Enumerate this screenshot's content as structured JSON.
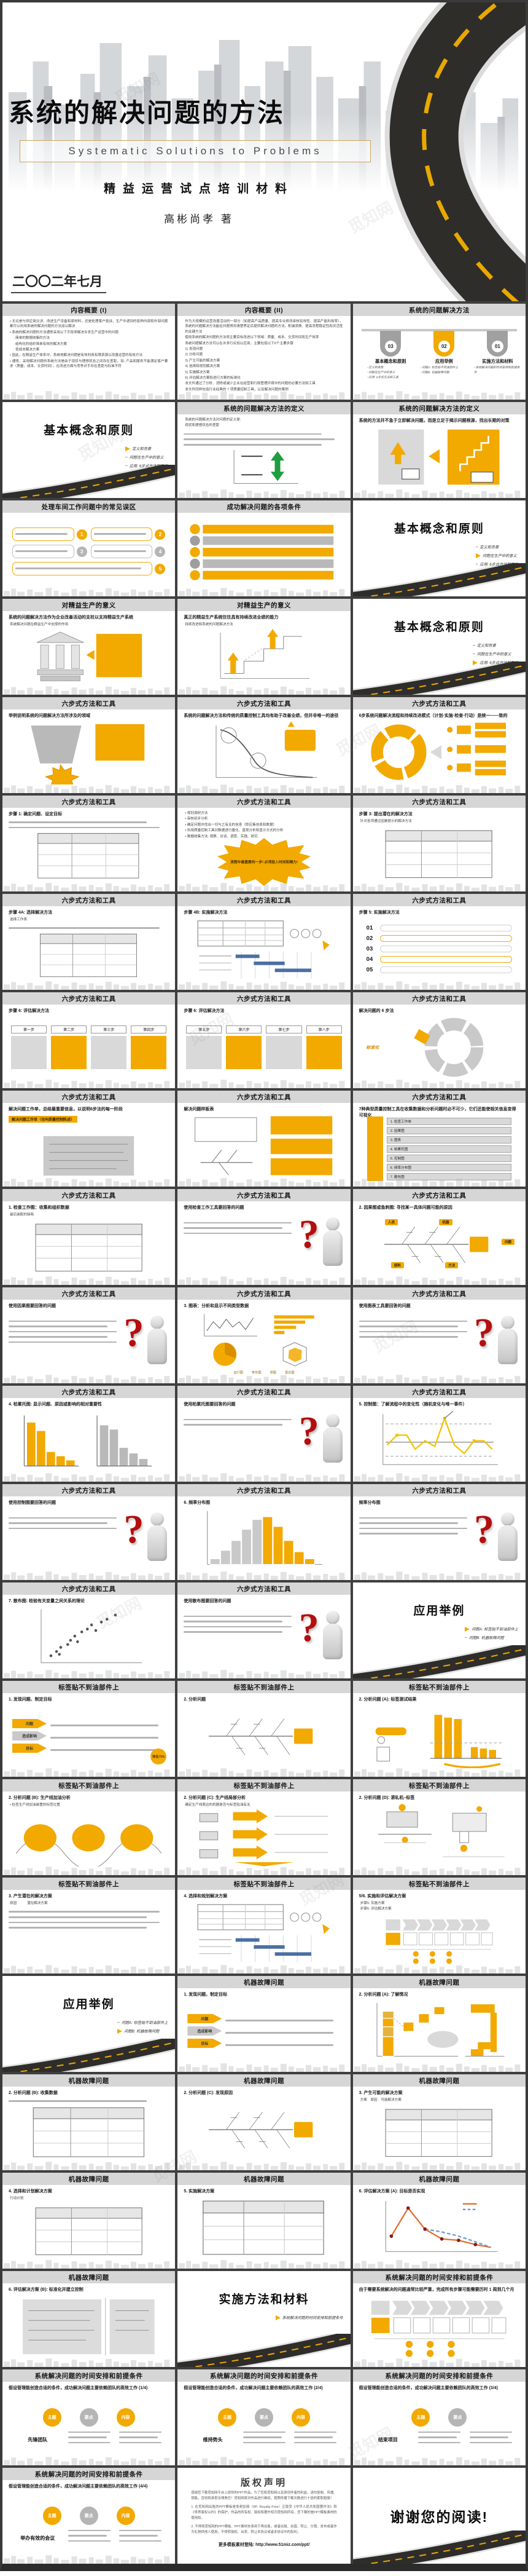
{
  "colors": {
    "accent": "#F2A900",
    "titlebar": "#D6D6D6",
    "road_dark": "#2F2D2A",
    "frame": "#3A3A3A",
    "question_red": "#B30F0F"
  },
  "watermark": "觅知网",
  "cover": {
    "title": "系统的解决问题的方法",
    "subtitle_en": "Systematic Solutions to Problems",
    "subtitle_zh": "精益运营试点培训材料",
    "author": "高彬尚孝 著",
    "date": "二〇〇二年七月"
  },
  "slides": [
    {
      "t": "内容概要 (I)",
      "b": [
        "• 无论是与供应商交涉、改进生产设备和原材料，还是处理客户投诉，生产中遇到的各种内部和外部问题都可以利用系统的解决问题的方法加以解决",
        "• 系统的解决问题的方法通常采用以下手段来解决许多生产运营中的问题",
        "　· 简单的数据收集的方法",
        "　· 结构化的组织简单有效的解决方案",
        "　· 低成本解决方案",
        "• 因此，在精益生产体系中，系统地解决问题是有效利用有限资源以改善运营的有效方法",
        "• 通常，采用解决问题的系统方法是由于现状与理想状态之间存在差距，如: 产品和服务不能满足客户要求（质量、成本、交货时间），在改进方面与竞争对手存在差距与标准不符"
      ]
    },
    {
      "t": "内容概要 (II)",
      "b": [
        "作为大规模的运营改善活动的一部分（如提高产品质量、提高专业修改审核有效性、提高产能利用率），系统的问题解决方法能在问题得到清楚界定后提供解决问题的方法，削减浪费、提高流程稳定性和灵活性的关键方法",
        "使用系统的解决问题的方法将主要目标改进以下领域：质量、成本、交货时间和生产效率",
        "系统问题解决方法可以在许多行业加以应用，主要包括以下6个主要步骤",
        "1) 发现问题",
        "2) 分析问题",
        "3) 产生可能的解决方案",
        "4) 选择和规划解决方案",
        "5) 实施解决方案",
        "6) 评估解决方案和进行方案的标准化",
        "本文件通过了分析、消除或减少企业在经营和行政管理环境中的问题的必要方法和工具",
        "本文件同样包括行业经典的 7 项质量控制工具，以及解决问题的案例"
      ]
    },
    {
      "t": "系统的问题解决方法",
      "v": "tags3",
      "tags": [
        {
          "num": "03",
          "color": "#a0a0a0",
          "label": "基本概念和原则",
          "subs": [
            "–定义和背景",
            "–问题在生产中的意义",
            "–应用: 6步式方法和工具"
          ]
        },
        {
          "num": "02",
          "color": "#F2A900",
          "label": "应用举例",
          "subs": [
            "–问题A: 标签贴不到油部件上",
            "–问题B: 机器故障问题"
          ]
        },
        {
          "num": "01",
          "color": "#a0a0a0",
          "label": "实施方法和材料",
          "subs": [
            "–系统解决问题的时间安排和前提条件"
          ]
        }
      ]
    },
    {
      "t": "基本概念和原则",
      "bar": false,
      "v": "divider",
      "items": [
        {
          "x": "定义和背景",
          "a": true
        },
        {
          "x": "问题在生产中的意义"
        },
        {
          "x": "应用: 6步式方法和工具"
        }
      ]
    },
    {
      "t": "系统的问题解决方法的定义",
      "b": [
        "系统的问题解决方法对问题的定义是:",
        "现状和理想状态的差距"
      ],
      "tl": 3,
      "v": "gap"
    },
    {
      "t": "系统的问题解决方法的定义",
      "sub": "系统的方法并不急于立即解决问题，而是立足于揭示问题根源，找出长期的对策",
      "v": "boxes2"
    },
    {
      "t": "处理车间工作问题中的常见误区",
      "v": "mis5",
      "nums": [
        "1",
        "2",
        "3",
        "4",
        "5"
      ]
    },
    {
      "t": "成功解决问题的各项条件",
      "v": "bars5"
    },
    {
      "t": "基本概念和原则",
      "bar": false,
      "v": "divider",
      "items": [
        {
          "x": "定义和背景"
        },
        {
          "x": "问题在生产中的意义",
          "a": true
        },
        {
          "x": "应用: 6步式方法和工具"
        }
      ]
    },
    {
      "t": "对精益生产的意义",
      "sub": "系统的问题解决方法作为企业改善活动的支柱以支持精益生产系统",
      "b": [
        "系统解决问题在精益生产中支撑的作用"
      ],
      "v": "temple"
    },
    {
      "t": "对精益生产的意义",
      "sub": "真正的精益生产系统往往具有持续改进业绩的能力",
      "b": [
        "持续改进和系统的问题解决方法"
      ],
      "v": "stair"
    },
    {
      "t": "基本概念和原则",
      "bar": false,
      "v": "divider",
      "items": [
        {
          "x": "定义和背景"
        },
        {
          "x": "问题在生产中的意义"
        },
        {
          "x": "应用: 6步式方法和工具",
          "a": true
        }
      ]
    },
    {
      "t": "六步式方法和工具",
      "sub": "举例说明系统的问题解决方法所涉及的领域",
      "v": "fields"
    },
    {
      "t": "六步式方法和工具",
      "sub": "系统的问题解决方法和传统的质量控制工具均有助于改善业绩，但并非唯一的途径",
      "v": "curve"
    },
    {
      "t": "六步式方法和工具",
      "sub": "6步系统问题解决流程和持续改进模式（计划·实施·检查·行动）是统一——致的",
      "v": "cycle"
    },
    {
      "t": "六步式方法和工具",
      "sub": "步骤 1: 确定问题、设定目标",
      "tl": 2,
      "v": "table"
    },
    {
      "t": "六步式方法和工具",
      "b": [
        "• 规划调研方法",
        "• 审核初步分析",
        "• 确定问题并找出一切与之有关的信息（即应集信息和数据）",
        "• 利用质量控制工具对数据进行量化、直观分析和显示方式的分析",
        "• 数据收集方法: 观察、访谈、调查、实践、研究"
      ],
      "v": "star",
      "note": "流程中最重要的一步! 必须投入时间和精力!"
    },
    {
      "t": "六步式方法和工具",
      "sub": "步骤 3: 提出潜在的解决方法",
      "b": [
        "针对各项通过因素提示的解决方法"
      ],
      "v": "table"
    },
    {
      "t": "六步式方法和工具",
      "sub": "步骤 4A: 选择解决方法",
      "b": [
        "选择工作表:"
      ],
      "tl": 1,
      "v": "table"
    },
    {
      "t": "六步式方法和工具",
      "sub": "步骤 4B: 实施解决方法",
      "v": "matrixgantt"
    },
    {
      "t": "六步式方法和工具",
      "sub": "步骤 5: 实施解决方法",
      "v": "steps01",
      "steps": [
        "01",
        "02",
        "03",
        "04",
        "05"
      ]
    },
    {
      "t": "六步式方法和工具",
      "sub": "步骤 6: 评估解决方法",
      "v": "cards4",
      "cards": [
        "第一步",
        "第二步",
        "第三步",
        "第四步"
      ]
    },
    {
      "t": "六步式方法和工具",
      "sub": "步骤 6: 评估解决方法",
      "v": "cards4",
      "cards": [
        "第五步",
        "第六步",
        "第七步",
        "第八步"
      ]
    },
    {
      "t": "六步式方法和工具",
      "sub": "解决问题的 6 步法",
      "v": "cycle6",
      "note": "标准化"
    },
    {
      "t": "六步式方法和工具",
      "sub": "解决问题工作单，总结最重要信息，以说明6步法的每一阶段",
      "hl": "解决问题工作单（也叫质量控制陈述）",
      "v": "worksheet"
    },
    {
      "t": "六步式方法和工具",
      "sub": "解决问题样板表",
      "v": "samples"
    },
    {
      "t": "六步式方法和工具",
      "sub": "7种典型质量控制工具在收集数据和分析问题时必不可少，它们还能使相关信息变得可视化",
      "v": "qclist",
      "items": [
        "1. 检查工作单",
        "2. 因果图",
        "3. 图表",
        "4. 柏累托图",
        "5. 控制图",
        "6. 频率分布图",
        "7. 散布图"
      ]
    },
    {
      "t": "六步式方法和工具",
      "sub": "1. 检查工作图：收集和组织数据",
      "b": [
        "最后装配的缺陷"
      ],
      "v": "table"
    },
    {
      "t": "六步式方法和工具",
      "sub": "使用检查工作工具要回答的问题",
      "tl": 3,
      "v": "question"
    },
    {
      "t": "六步式方法和工具",
      "sub": "2. 因果图或鱼刺图: 寻找某一具体问题可能的原因",
      "v": "fishbone",
      "nodes": [
        "人员",
        "机器",
        "原料",
        "方法"
      ],
      "tail": "问题"
    },
    {
      "t": "六步式方法和工具",
      "sub": "使用因果图要回答的问题",
      "tl": 5,
      "v": "question"
    },
    {
      "t": "六步式方法和工具",
      "sub": "3. 图表：分析和显示不同类型数据",
      "v": "charts4",
      "labels": [
        "运行图",
        "条形图",
        "饼图",
        "雷达图"
      ]
    },
    {
      "t": "六步式方法和工具",
      "sub": "使用图表工具要回答的问题",
      "tl": 4,
      "v": "question"
    },
    {
      "t": "六步式方法和工具",
      "sub": "4. 柏累托图: 显示问题、原因或影响的相对重要性",
      "v": "pareto"
    },
    {
      "t": "六步式方法和工具",
      "sub": "使用柏累托图要回答的问题",
      "tl": 2,
      "v": "question"
    },
    {
      "t": "六步式方法和工具",
      "sub": "5. 控制图：了解流程中的变化性（随机变化与唯一事件）",
      "v": "control"
    },
    {
      "t": "六步式方法和工具",
      "sub": "使用控制图要回答的问题",
      "tl": 3,
      "v": "question"
    },
    {
      "t": "六步式方法和工具",
      "sub": "6. 频率分布图",
      "v": "hist"
    },
    {
      "t": "六步式方法和工具",
      "sub": "频率分布图",
      "tl": 4,
      "v": "question"
    },
    {
      "t": "六步式方法和工具",
      "sub": "7. 散布图: 检验有关变量之间关系的理论",
      "v": "scatter"
    },
    {
      "t": "六步式方法和工具",
      "sub": "使用散布图要回答的问题",
      "tl": 4,
      "v": "question"
    },
    {
      "t": "应用举例",
      "bar": false,
      "v": "divider",
      "items": [
        {
          "x": "问题A: 标签贴不到油部件上",
          "a": true
        },
        {
          "x": "问题B: 机器故障问题"
        }
      ]
    },
    {
      "t": "标签贴不到油部件上",
      "sub": "1. 发现问题、制定目标",
      "v": "arrows3",
      "arrows": [
        "问题",
        "造成影响",
        "目标"
      ],
      "note": "降低75%"
    },
    {
      "t": "标签贴不到油部件上",
      "sub": "2. 分析问题",
      "v": "fishbone"
    },
    {
      "t": "标签贴不到油部件上",
      "sub": "2. 分析问题 (A): 标签测试结果",
      "v": "barsA"
    },
    {
      "t": "标签贴不到油部件上",
      "sub": "2. 分析问题 (B): 生产线加油分析",
      "b": [
        "• 检查生产线加油装置的标签位置"
      ],
      "v": "circles3"
    },
    {
      "t": "标签贴不到油部件上",
      "sub": "2. 分析问题 (C): 生产线局部分析",
      "b": [
        "确定生产线周边的机器是否与标签贴油有关"
      ],
      "v": "arrowflow"
    },
    {
      "t": "标签贴不到油部件上",
      "sub": "2. 分析问题 (D): 滚轧机–标签",
      "v": "schematic"
    },
    {
      "t": "标签贴不到油部件上",
      "sub": "3. 产生潜在的解决方案",
      "b": [
        "原因　　　潜在解决方案"
      ],
      "tl": 4,
      "v": null
    },
    {
      "t": "标签贴不到油部件上",
      "sub": "4. 选择和规划解决方案",
      "v": "matrixgantt"
    },
    {
      "t": "标签贴不到油部件上",
      "sub": "5/6. 实施和评估解决方案",
      "b": [
        "步骤5: 实施方案",
        "步骤6: 评估解决方案"
      ],
      "v": "timeline"
    },
    {
      "t": "应用举例",
      "bar": false,
      "v": "divider",
      "items": [
        {
          "x": "问题A: 标签贴不到油部件上"
        },
        {
          "x": "问题B: 机器故障问题",
          "a": true
        }
      ]
    },
    {
      "t": "机器故障问题",
      "sub": "1. 发现问题，制定目标",
      "v": "arrows3",
      "arrows": [
        "问题",
        "造成影响",
        "目标"
      ]
    },
    {
      "t": "机器故障问题",
      "sub": "2. 分析问题 (A): 了解情况",
      "v": "stackbars"
    },
    {
      "t": "机器故障问题",
      "sub": "2. 分析问题 (B): 收集数据",
      "tl": 1,
      "v": "table"
    },
    {
      "t": "机器故障问题",
      "sub": "2. 分析问题 (C): 发现原因",
      "v": "fishbone"
    },
    {
      "t": "机器故障问题",
      "sub": "3. 产生可能的解决方案",
      "b": [
        "方案　原因　可能解决方案"
      ],
      "v": "table"
    },
    {
      "t": "机器故障问题",
      "sub": "4. 选择和计划解决方案",
      "b": [
        "行动计划"
      ],
      "v": "table"
    },
    {
      "t": "机器故障问题",
      "sub": "5. 实施解决方案",
      "v": "table"
    },
    {
      "t": "机器故障问题",
      "sub": "6. 评估解决方案 (A): 目标是否实现",
      "v": "linecmp"
    },
    {
      "t": "机器故障问题",
      "sub": "6. 评估解决方案 (B): 标准化并建立控制",
      "v": "textboxes2"
    },
    {
      "t": "实施方法和材料",
      "bar": false,
      "v": "divider",
      "items": [
        {
          "x": "系统解决问题的时间安排和前提条件",
          "a": true
        }
      ]
    },
    {
      "t": "系统解决问题的时间安排和前提条件",
      "sub": "由于需要系统解决的问题通常比较严重，完成所有步骤可能需要历时 1 周到几个月",
      "v": "timeline"
    },
    {
      "t": "系统解决问题的时间安排和前提条件",
      "sub": "假设管理能创造合适的条件，成功解决问题主要依赖团队的高效工作 (1/4)",
      "v": "topics",
      "circles": [
        "主题",
        "要点",
        "内容"
      ],
      "theme": "先锋团队"
    },
    {
      "t": "系统解决问题的时间安排和前提条件",
      "sub": "假设管理能创造合适的条件，成功解决问题主要依赖团队的高效工作 (2/4)",
      "v": "topics",
      "circles": [
        "主题",
        "要点",
        "内容"
      ],
      "theme": "维持势头"
    },
    {
      "t": "系统解决问题的时间安排和前提条件",
      "sub": "假设管理能创造合适的条件，成功解决问题主要依赖团队的高效工作 (3/4)",
      "v": "topics",
      "circles": [
        "主题",
        "要点"
      ],
      "theme": "结束项目"
    },
    {
      "t": "系统解决问题的时间安排和前提条件",
      "sub": "假设管理能创造合适的条件，成功解决问题主要依赖团队的高效工作 (4/4)",
      "v": "topics",
      "circles": [
        "主题",
        "要点",
        "内容"
      ],
      "theme": "举办有效的会议"
    },
    {
      "t": "版权声明",
      "bar": false,
      "v": "doc",
      "b": [
        "感谢您下载觅知网平台上提供的PPT作品，为了您和觅知网以及原创作者的利益，请勿复制、传播、销售，否则将承担法律责任！觅知网将对作品进行维权，按照传播下载次数进行十倍的索取赔偿！",
        "1. 在觅知网出售的PPT模板是免税加授（RF: Royalty-Free）正版受《中华人民共和国著作法》和《世界版权公约》的保护，作品的所有权、版权和著作权归觅知网所有，您下载的是PPT模板素材的使用权。",
        "2. 不得将觅知网的PPT模板、PPT素材本身用于再出售，或者出租、出借、转让、分销、发布或者作为礼物供他人使用，不得转授权、出卖、转让本协议或者本协议中的权利。"
      ],
      "footer": "更多模板素材登陆: http://www.51miz.com/ppt/"
    },
    {
      "t": "谢谢您的阅读!",
      "bar": false,
      "v": "divider",
      "big": true,
      "items": []
    }
  ]
}
